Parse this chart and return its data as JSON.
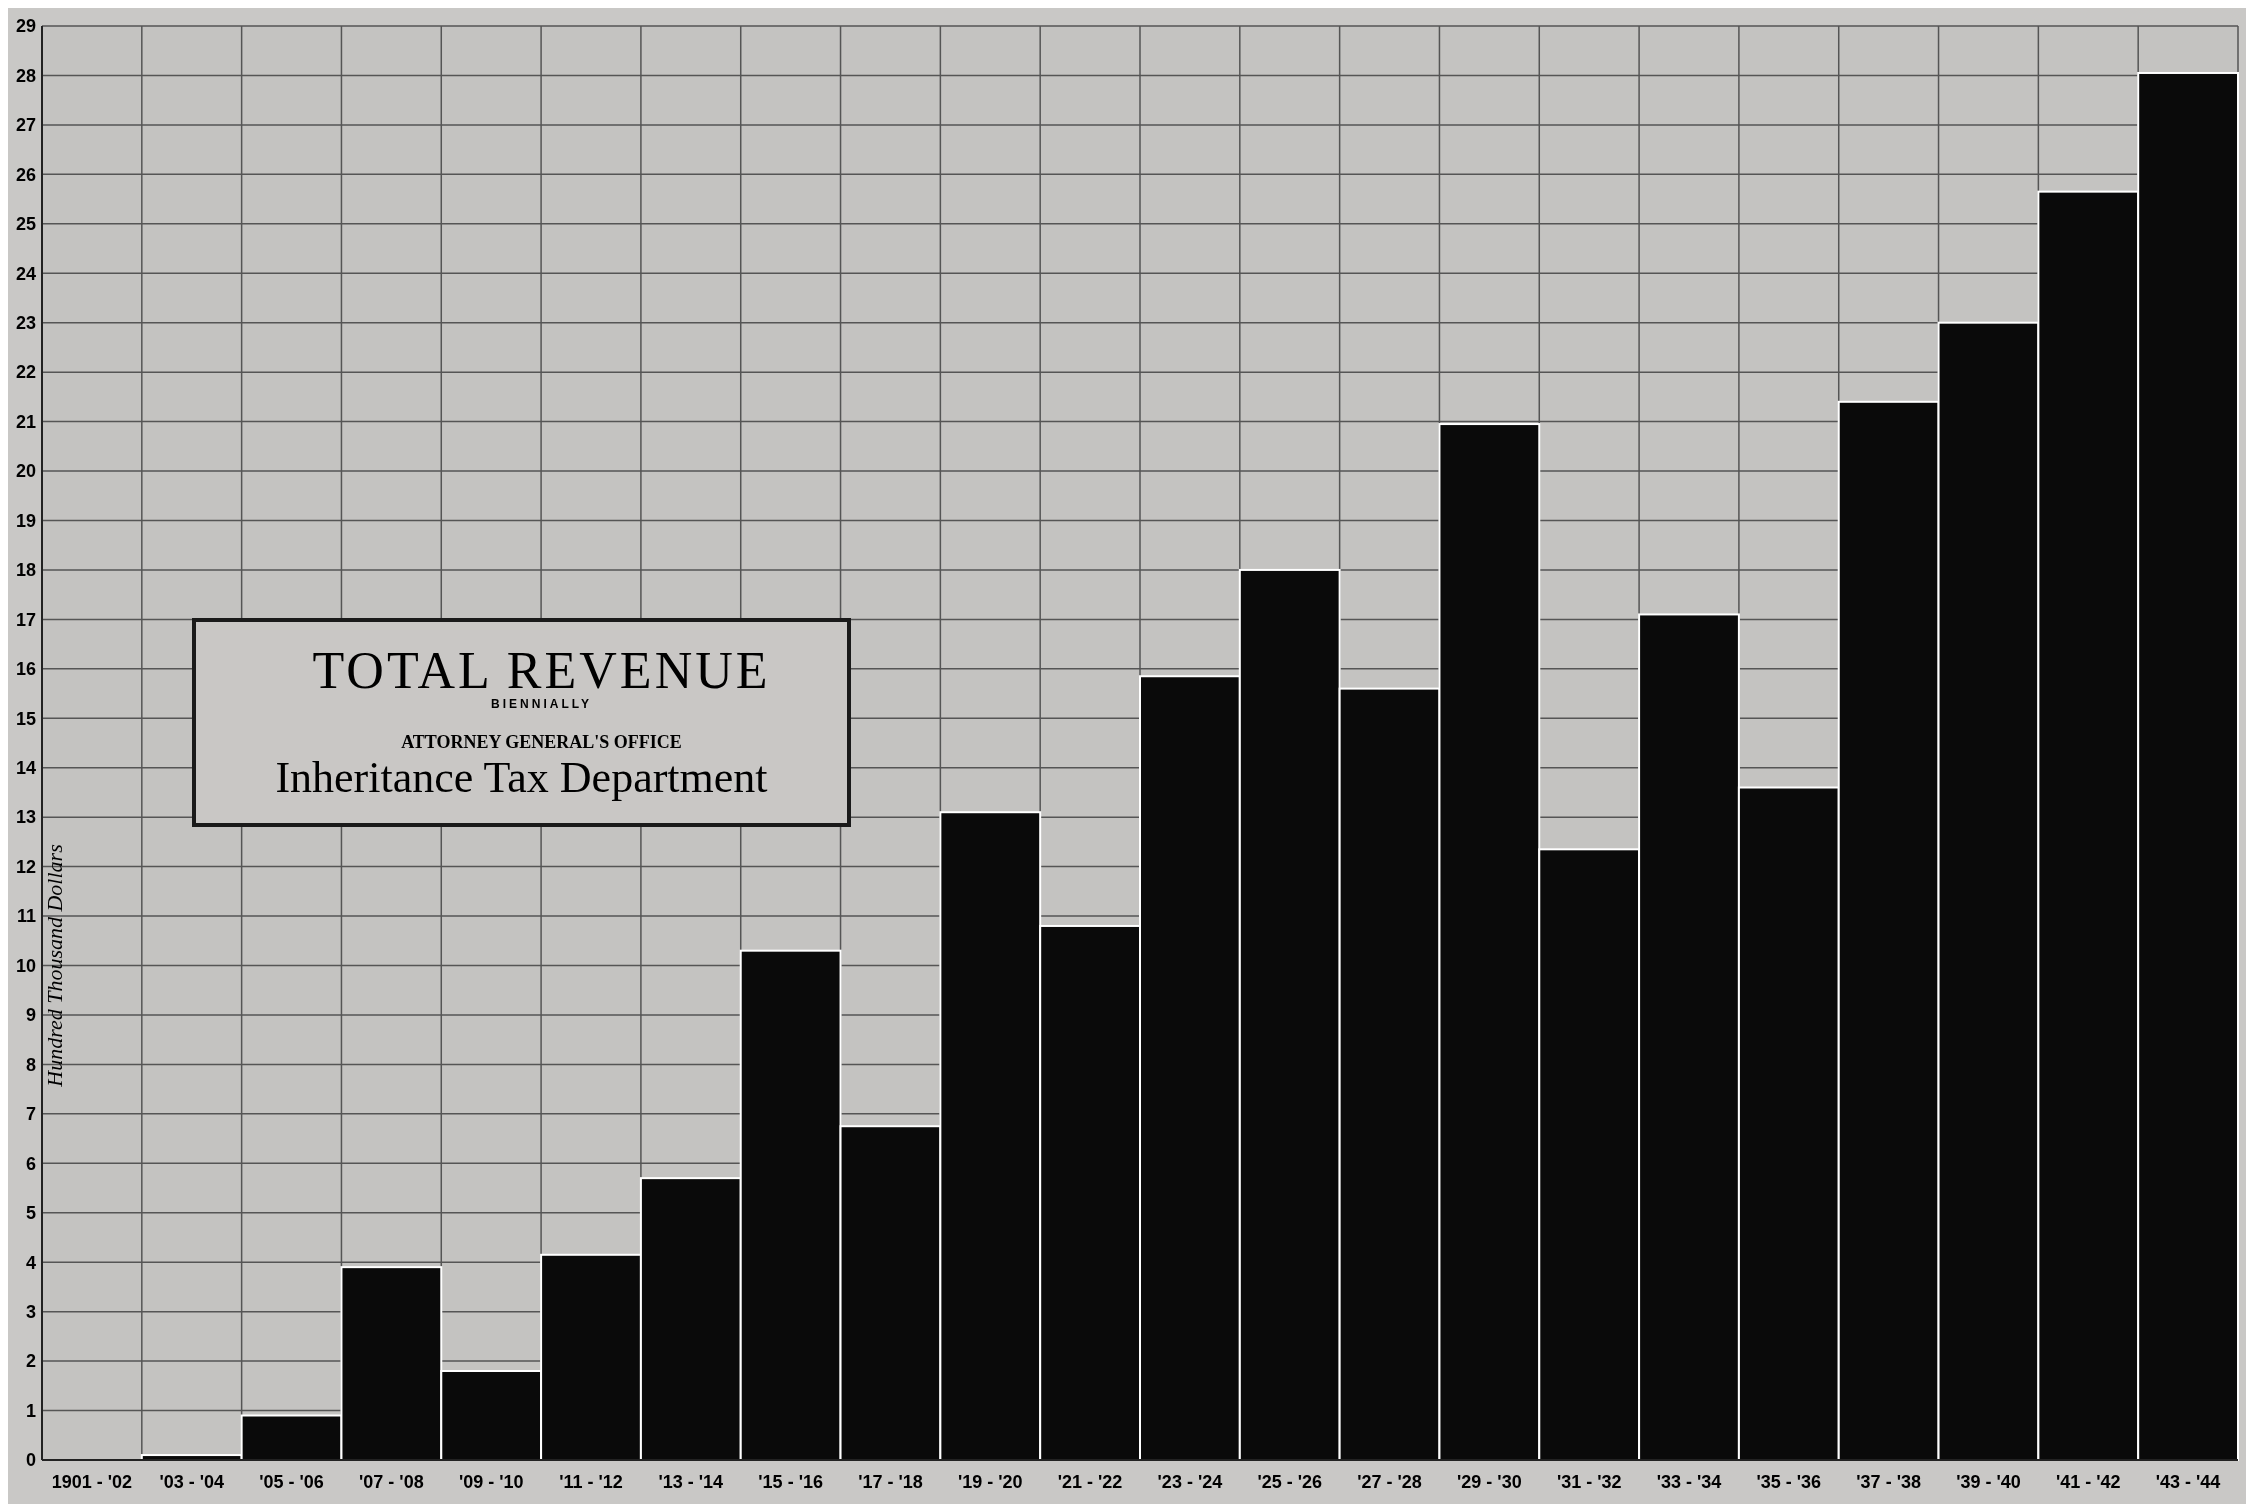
{
  "chart_data": {
    "type": "bar",
    "title": "TOTAL REVENUE",
    "subtitle": "BIENNIALLY",
    "annotations": [
      "ATTORNEY GENERAL'S OFFICE",
      "Inheritance Tax Department"
    ],
    "ylabel": "Hundred Thousand Dollars",
    "categories": [
      "1901 - '02",
      "'03 - '04",
      "'05 - '06",
      "'07 - '08",
      "'09 - '10",
      "'11 - '12",
      "'13 - '14",
      "'15 - '16",
      "'17 - '18",
      "'19 - '20",
      "'21 - '22",
      "'23 - '24",
      "'25 - '26",
      "'27 - '28",
      "'29 - '30",
      "'31 - '32",
      "'33 - '34",
      "'35 - '36",
      "'37 - '38",
      "'39 - '40",
      "'41 - '42",
      "'43 - '44"
    ],
    "values": [
      null,
      0.1,
      0.9,
      3.9,
      1.8,
      4.15,
      5.7,
      10.3,
      6.75,
      13.1,
      10.8,
      15.85,
      18.0,
      15.6,
      20.95,
      12.35,
      17.1,
      13.6,
      21.4,
      23.0,
      25.65,
      28.05
    ],
    "color": "#0a0a0a",
    "ylim": [
      0,
      29
    ],
    "yticks": [
      0,
      1,
      2,
      3,
      4,
      5,
      6,
      7,
      8,
      9,
      10,
      11,
      12,
      13,
      14,
      15,
      16,
      17,
      18,
      19,
      20,
      21,
      22,
      23,
      24,
      25,
      26,
      27,
      28,
      29
    ],
    "grid": true
  }
}
